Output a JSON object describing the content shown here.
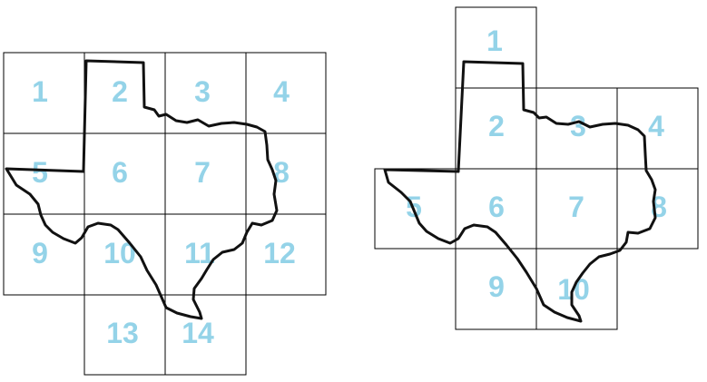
{
  "colors": {
    "number": "#94d3e8",
    "grid": "#000000",
    "outline": "#111111"
  },
  "grids": [
    {
      "name": "left-grid",
      "cells": [
        "1",
        "2",
        "3",
        "4",
        "5",
        "6",
        "7",
        "8",
        "9",
        "10",
        "11",
        "12",
        "13",
        "14"
      ]
    },
    {
      "name": "right-grid",
      "cells": [
        "1",
        "2",
        "3",
        "4",
        "5",
        "6",
        "7",
        "8",
        "9",
        "10"
      ]
    }
  ]
}
